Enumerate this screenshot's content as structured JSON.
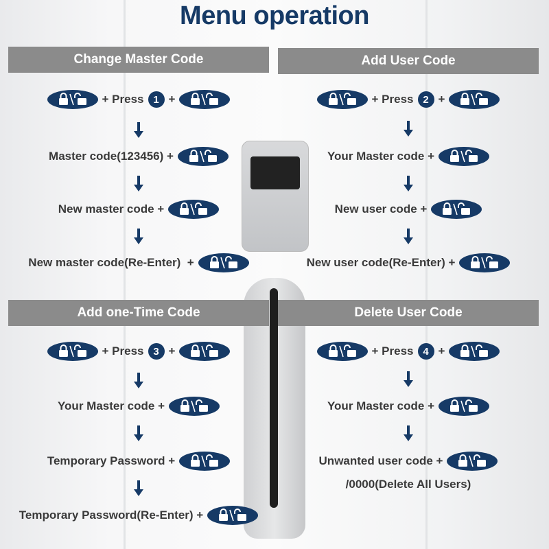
{
  "title": "Menu operation",
  "colors": {
    "navy": "#163a66",
    "header_bg": "#8b8b8b",
    "text": "#3a3a3a"
  },
  "icons": {
    "pill": "lock-unlock-icon",
    "arrow": "arrow-down-icon"
  },
  "panels": [
    {
      "header": "Change Master Code",
      "rows": [
        [
          {
            "t": "icon"
          },
          {
            "t": "text",
            "v": "+ Press"
          },
          {
            "t": "badge",
            "v": "1"
          },
          {
            "t": "text",
            "v": "+"
          },
          {
            "t": "icon"
          }
        ],
        [
          {
            "t": "text",
            "v": "Master code(123456) +"
          },
          {
            "t": "icon"
          }
        ],
        [
          {
            "t": "text",
            "v": "New master code +"
          },
          {
            "t": "icon"
          }
        ],
        [
          {
            "t": "text",
            "v": "New master code(Re-Enter)  +"
          },
          {
            "t": "icon"
          }
        ]
      ]
    },
    {
      "header": "Add User Code",
      "rows": [
        [
          {
            "t": "icon"
          },
          {
            "t": "text",
            "v": "+ Press"
          },
          {
            "t": "badge",
            "v": "2"
          },
          {
            "t": "text",
            "v": "+"
          },
          {
            "t": "icon"
          }
        ],
        [
          {
            "t": "text",
            "v": "Your Master code +"
          },
          {
            "t": "icon"
          }
        ],
        [
          {
            "t": "text",
            "v": "New user code +"
          },
          {
            "t": "icon"
          }
        ],
        [
          {
            "t": "text",
            "v": "New user code(Re-Enter) +"
          },
          {
            "t": "icon"
          }
        ]
      ]
    },
    {
      "header": "Add one-Time Code",
      "rows": [
        [
          {
            "t": "icon"
          },
          {
            "t": "text",
            "v": "+ Press"
          },
          {
            "t": "badge",
            "v": "3"
          },
          {
            "t": "text",
            "v": "+"
          },
          {
            "t": "icon"
          }
        ],
        [
          {
            "t": "text",
            "v": "Your Master code +"
          },
          {
            "t": "icon"
          }
        ],
        [
          {
            "t": "text",
            "v": "Temporary Password +"
          },
          {
            "t": "icon"
          }
        ],
        [
          {
            "t": "text",
            "v": "Temporary Password(Re-Enter) +"
          },
          {
            "t": "icon"
          }
        ]
      ]
    },
    {
      "header": "Delete User Code",
      "rows": [
        [
          {
            "t": "icon"
          },
          {
            "t": "text",
            "v": "+ Press"
          },
          {
            "t": "badge",
            "v": "4"
          },
          {
            "t": "text",
            "v": "+"
          },
          {
            "t": "icon"
          }
        ],
        [
          {
            "t": "text",
            "v": "Your Master code +"
          },
          {
            "t": "icon"
          }
        ],
        [
          {
            "t": "text",
            "v": "Unwanted user code +"
          },
          {
            "t": "icon"
          }
        ],
        [
          {
            "t": "text",
            "v": "/0000(Delete All Users)"
          }
        ]
      ]
    }
  ]
}
